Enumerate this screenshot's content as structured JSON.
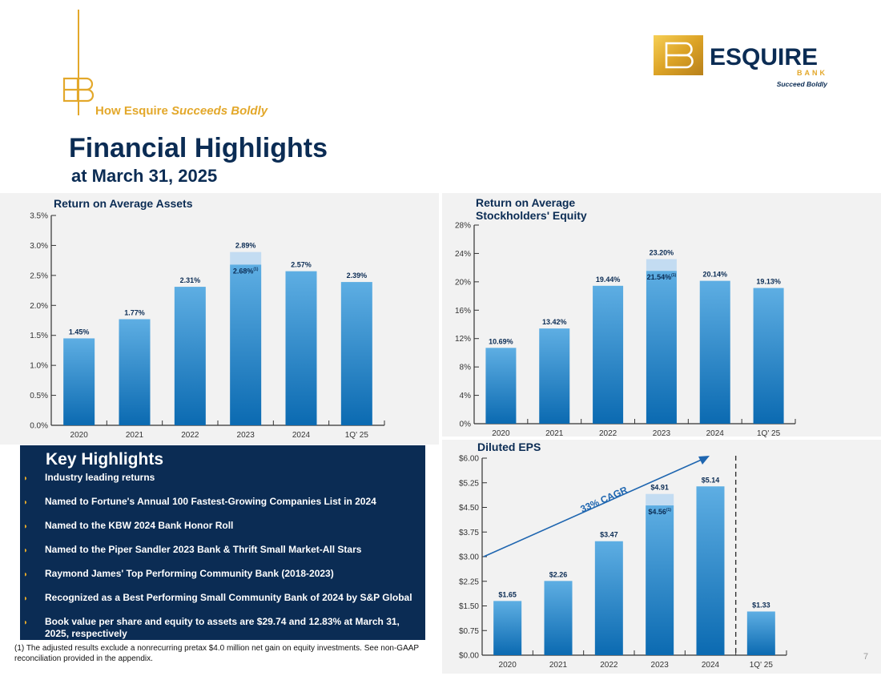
{
  "header": {
    "tagline_prefix": "How Esquire",
    "tagline_emphasis": "Succeeds Boldly",
    "title": "Financial Highlights",
    "subtitle": "at March 31, 2025"
  },
  "logo": {
    "brand": "ESQUIRE",
    "sub": "BANK",
    "slogan": "Succeed Boldly"
  },
  "colors": {
    "navy": "#0b2c54",
    "gold": "#e3a82b",
    "bar_top": "#5eaee3",
    "bar_bottom": "#0b6ab1",
    "bar_extra": "#c3dcf2",
    "panel": "#f2f2f2",
    "arrow": "#1f66b0"
  },
  "highlights": {
    "title": "Key Highlights",
    "items": [
      "Industry leading returns",
      "Named to Fortune's Annual 100 Fastest-Growing Companies List in 2024",
      "Named to the KBW 2024 Bank Honor Roll",
      "Named to the Piper Sandler 2023 Bank & Thrift Small Market-All Stars",
      "Raymond James' Top Performing Community Bank (2018-2023)",
      "Recognized as a Best Performing Small Community Bank of 2024 by S&P Global",
      "Book value per share and equity to assets are $29.74 and 12.83% at March 31, 2025, respectively"
    ]
  },
  "footnote": "(1) The adjusted results exclude a nonrecurring pretax $4.0 million net gain on equity investments. See non-GAAP reconciliation provided in the appendix.",
  "page_number": "7",
  "chart_data": [
    {
      "type": "bar",
      "title": "Return on Average Assets",
      "categories": [
        "2020",
        "2021",
        "2022",
        "2023",
        "2024",
        "1Q' 25"
      ],
      "values": [
        1.45,
        1.77,
        2.31,
        2.89,
        2.57,
        2.39
      ],
      "labels": [
        "1.45%",
        "1.77%",
        "2.31%",
        "2.89%",
        "2.57%",
        "2.39%"
      ],
      "adjusted": {
        "index": 3,
        "value": 2.68,
        "label": "2.68%",
        "footnote_mark": "(1)"
      },
      "ylim": [
        0,
        3.5
      ],
      "yticks": [
        0,
        0.5,
        1.0,
        1.5,
        2.0,
        2.5,
        3.0,
        3.5
      ],
      "ytick_labels": [
        "0.0%",
        "0.5%",
        "1.0%",
        "1.5%",
        "2.0%",
        "2.5%",
        "3.0%",
        "3.5%"
      ]
    },
    {
      "type": "bar",
      "title": [
        "Return on Average",
        "Stockholders' Equity"
      ],
      "categories": [
        "2020",
        "2021",
        "2022",
        "2023",
        "2024",
        "1Q' 25"
      ],
      "values": [
        10.69,
        13.42,
        19.44,
        23.2,
        20.14,
        19.13
      ],
      "labels": [
        "10.69%",
        "13.42%",
        "19.44%",
        "23.20%",
        "20.14%",
        "19.13%"
      ],
      "adjusted": {
        "index": 3,
        "value": 21.54,
        "label": "21.54%",
        "footnote_mark": "(1)"
      },
      "ylim": [
        0,
        28
      ],
      "yticks": [
        0,
        4,
        8,
        12,
        16,
        20,
        24,
        28
      ],
      "ytick_labels": [
        "0%",
        "4%",
        "8%",
        "12%",
        "16%",
        "20%",
        "24%",
        "28%"
      ]
    },
    {
      "type": "bar",
      "title": "Diluted EPS",
      "categories": [
        "2020",
        "2021",
        "2022",
        "2023",
        "2024",
        "1Q' 25"
      ],
      "values": [
        1.65,
        2.26,
        3.47,
        4.91,
        5.14,
        1.33
      ],
      "labels": [
        "$1.65",
        "$2.26",
        "$3.47",
        "$4.91",
        "$5.14",
        "$1.33"
      ],
      "adjusted": {
        "index": 3,
        "value": 4.56,
        "label": "$4.56",
        "footnote_mark": "(1)"
      },
      "ylim": [
        0,
        6
      ],
      "yticks": [
        0,
        0.75,
        1.5,
        2.25,
        3.0,
        3.75,
        4.5,
        5.25,
        6.0
      ],
      "ytick_labels": [
        "$0.00",
        "$0.75",
        "$1.50",
        "$2.25",
        "$3.00",
        "$3.75",
        "$4.50",
        "$5.25",
        "$6.00"
      ],
      "annotation": "33% CAGR"
    }
  ]
}
